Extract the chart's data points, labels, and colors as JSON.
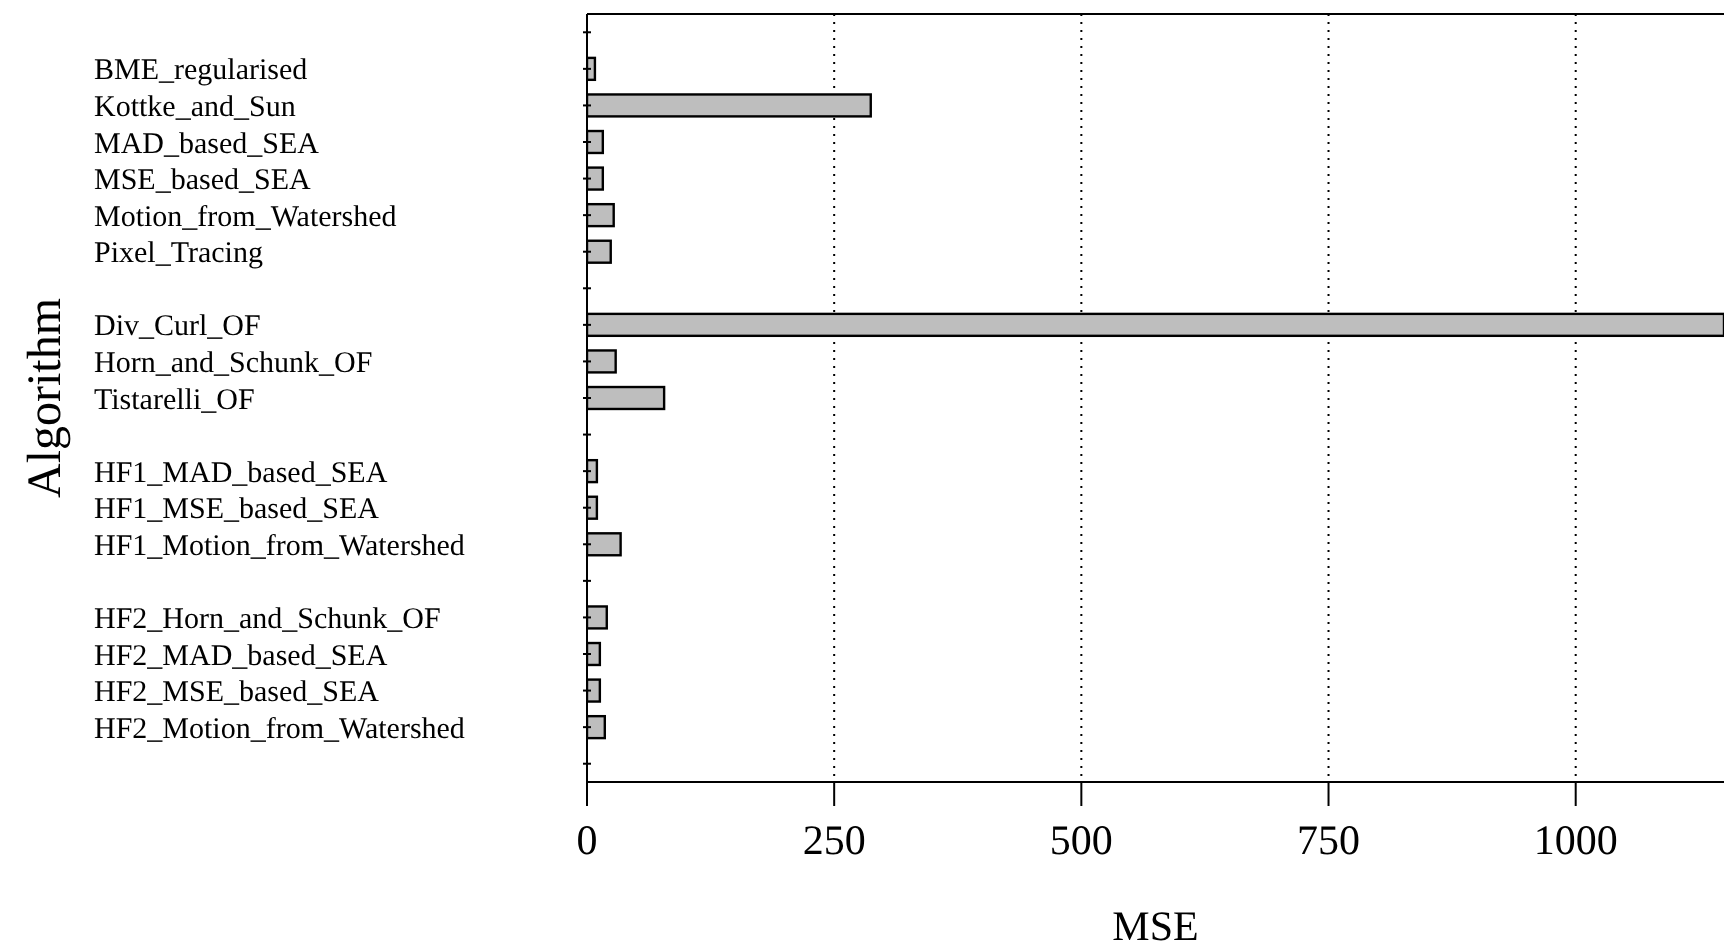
{
  "chart_data": {
    "type": "bar",
    "orientation": "horizontal",
    "xlabel": "MSE",
    "ylabel": "Algorithm",
    "categories": [
      null,
      "BME_regularised",
      "Kottke_and_Sun",
      "MAD_based_SEA",
      "MSE_based_SEA",
      "Motion_from_Watershed",
      "Pixel_Tracing",
      null,
      "Div_Curl_OF",
      "Horn_and_Schunk_OF",
      "Tistarelli_OF",
      null,
      "HF1_MAD_based_SEA",
      "HF1_MSE_based_SEA",
      "HF1_Motion_from_Watershed",
      null,
      "HF2_Horn_and_Schunk_OF",
      "HF2_MAD_based_SEA",
      "HF2_MSE_based_SEA",
      "HF2_Motion_from_Watershed",
      null
    ],
    "values": [
      null,
      8,
      287,
      16,
      16,
      27,
      24,
      null,
      1150,
      29,
      78,
      null,
      10,
      10,
      34,
      null,
      20,
      13,
      13,
      18,
      null
    ],
    "color": "#bebebe",
    "xlim": [
      0,
      1150
    ],
    "xticks": [
      0,
      250,
      500,
      750,
      1000
    ],
    "grid": "x"
  }
}
